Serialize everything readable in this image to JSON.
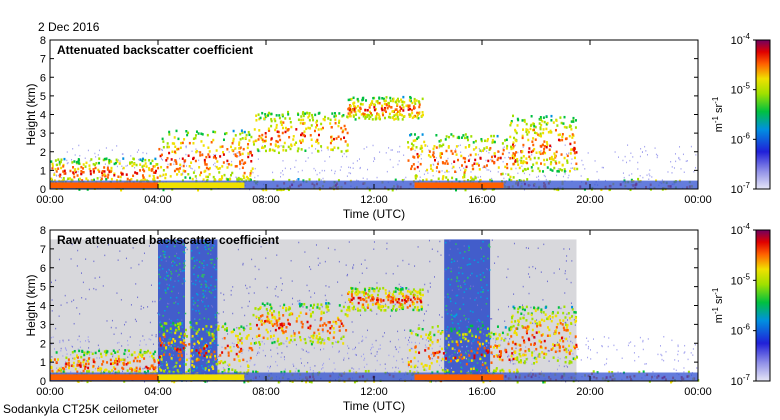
{
  "header": {
    "date": "2 Dec 2016"
  },
  "footer": {
    "instrument": "Sodankyla CT25K ceilometer"
  },
  "chart_data": [
    {
      "type": "heatmap",
      "title": "Attenuated backscatter coefficient",
      "xlabel": "Time (UTC)",
      "ylabel": "Height (km)",
      "xticks": [
        "00:00",
        "04:00",
        "08:00",
        "12:00",
        "16:00",
        "20:00",
        "00:00"
      ],
      "xlim_hours": [
        0,
        24
      ],
      "yticks": [
        0,
        1,
        2,
        3,
        4,
        5,
        6,
        7,
        8
      ],
      "ylim": [
        0,
        8
      ],
      "colorbar": {
        "labels": [
          "10",
          "10",
          "10",
          "10"
        ],
        "exponents": [
          "-4",
          "-5",
          "-6",
          "-7"
        ],
        "unit_main": "m",
        "unit_exp1": "-1",
        "unit_sr": "sr",
        "unit_exp2": "-1",
        "scale": "log",
        "range": [
          1e-07,
          0.0001
        ]
      },
      "raw_noise": false,
      "features": [
        {
          "name": "surface layer",
          "t": [
            0,
            24
          ],
          "top_km": 0.6
        },
        {
          "name": "early low cloud",
          "t": [
            0,
            4
          ],
          "base_km": 0.3,
          "top_km": 1.7
        },
        {
          "name": "morning aerosol layer",
          "t": [
            4,
            7.5
          ],
          "base_km": 0.5,
          "top_km": 3.2
        },
        {
          "name": "elevated cloud",
          "t": [
            7.5,
            11
          ],
          "base_km": 2.0,
          "top_km": 4.2
        },
        {
          "name": "midday high cloud",
          "t": [
            11,
            13.8
          ],
          "base_km": 3.8,
          "top_km": 5.0
        },
        {
          "name": "afternoon cloud",
          "t": [
            13.2,
            17.3
          ],
          "base_km": 0.4,
          "top_km": 3.0
        },
        {
          "name": "evening cloud",
          "t": [
            17,
            19.5
          ],
          "base_km": 1.0,
          "top_km": 4.0
        }
      ]
    },
    {
      "type": "heatmap",
      "title": "Raw attenuated backscatter coefficient",
      "xlabel": "Time (UTC)",
      "ylabel": "Height (km)",
      "xticks": [
        "00:00",
        "04:00",
        "08:00",
        "12:00",
        "16:00",
        "20:00",
        "00:00"
      ],
      "xlim_hours": [
        0,
        24
      ],
      "yticks": [
        0,
        1,
        2,
        3,
        4,
        5,
        6,
        7,
        8
      ],
      "ylim": [
        0,
        8
      ],
      "colorbar": {
        "labels": [
          "10",
          "10",
          "10",
          "10"
        ],
        "exponents": [
          "-4",
          "-5",
          "-6",
          "-7"
        ],
        "unit_main": "m",
        "unit_exp1": "-1",
        "unit_sr": "sr",
        "unit_exp2": "-1",
        "scale": "log",
        "range": [
          1e-07,
          0.0001
        ]
      },
      "raw_noise": true,
      "noise_bands_hours": [
        [
          4,
          5
        ],
        [
          5.2,
          6.2
        ],
        [
          14.6,
          16.3
        ]
      ],
      "features": [
        {
          "name": "surface layer",
          "t": [
            0,
            24
          ],
          "top_km": 0.6
        },
        {
          "name": "early low cloud",
          "t": [
            0,
            4
          ],
          "base_km": 0.3,
          "top_km": 1.7
        },
        {
          "name": "morning aerosol layer",
          "t": [
            4,
            7.5
          ],
          "base_km": 0.5,
          "top_km": 3.2
        },
        {
          "name": "elevated cloud",
          "t": [
            7.5,
            11
          ],
          "base_km": 2.0,
          "top_km": 4.2
        },
        {
          "name": "midday high cloud",
          "t": [
            11,
            13.8
          ],
          "base_km": 3.8,
          "top_km": 5.0
        },
        {
          "name": "afternoon cloud",
          "t": [
            13.2,
            17.3
          ],
          "base_km": 0.4,
          "top_km": 3.0
        },
        {
          "name": "evening cloud",
          "t": [
            17,
            19.5
          ],
          "base_km": 1.0,
          "top_km": 4.0
        }
      ]
    }
  ]
}
